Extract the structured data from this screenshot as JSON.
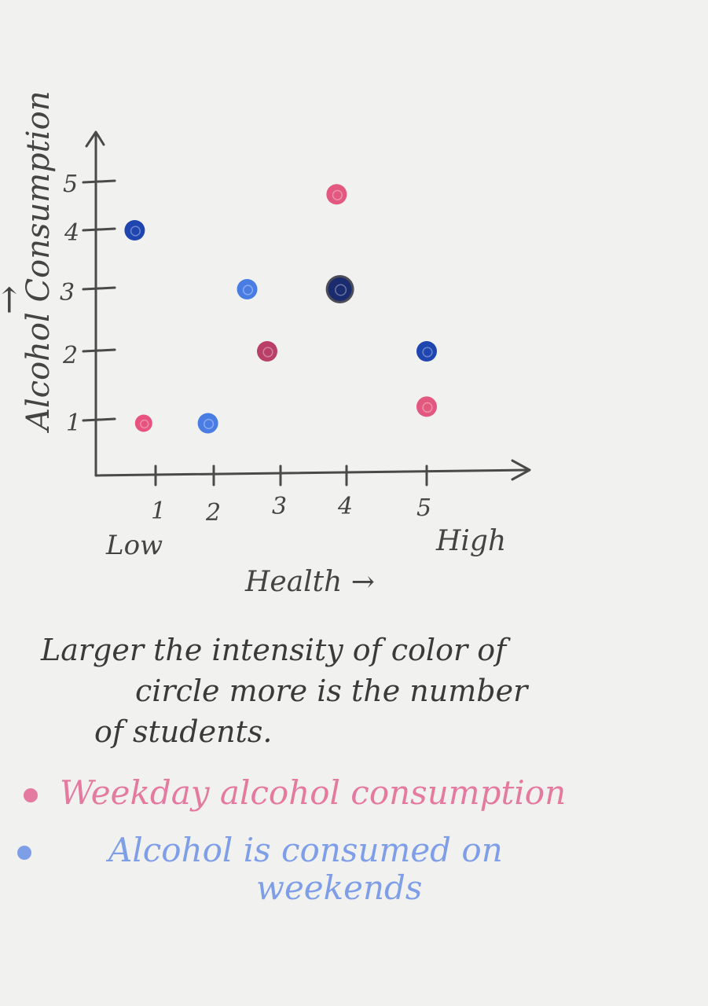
{
  "chart_data": {
    "type": "scatter",
    "xlabel": "Health →",
    "ylabel": "Alcohol Consumption",
    "ylabel_arrow": "→",
    "x_ticks": [
      "1",
      "2",
      "3",
      "4",
      "5"
    ],
    "y_ticks": [
      "1",
      "2",
      "3",
      "4",
      "5"
    ],
    "x_end_labels": {
      "low": "Low",
      "high": "High"
    },
    "xlim": [
      0,
      6
    ],
    "ylim": [
      0,
      6
    ],
    "grid": false,
    "legend_position": "bottom",
    "series": [
      {
        "name": "Weekday alcohol consumption",
        "color": "#e04f7e",
        "points": [
          {
            "x": 0.8,
            "y": 0.95,
            "intensity": "light"
          },
          {
            "x": 2.8,
            "y": 2.0,
            "intensity": "dark"
          },
          {
            "x": 3.85,
            "y": 4.75,
            "intensity": "medium"
          },
          {
            "x": 5.0,
            "y": 1.2,
            "intensity": "medium"
          }
        ]
      },
      {
        "name": "Alcohol is consumed on weekends",
        "color": "#3f6fd8",
        "points": [
          {
            "x": 0.65,
            "y": 4.0,
            "intensity": "dark"
          },
          {
            "x": 1.9,
            "y": 0.95,
            "intensity": "medium"
          },
          {
            "x": 2.5,
            "y": 3.0,
            "intensity": "medium"
          },
          {
            "x": 3.9,
            "y": 3.0,
            "intensity": "darkest"
          },
          {
            "x": 5.0,
            "y": 2.0,
            "intensity": "dark"
          }
        ]
      }
    ]
  },
  "note": {
    "line1": "Larger the intensity of color of",
    "line2": "circle more is the number",
    "line3": "of students."
  },
  "legend": {
    "items": [
      {
        "label": "Weekday alcohol consumption",
        "color": "#e57aa0"
      },
      {
        "label_line1": "Alcohol is consumed on",
        "label_line2": "weekends",
        "color": "#7f9ee8"
      }
    ]
  }
}
